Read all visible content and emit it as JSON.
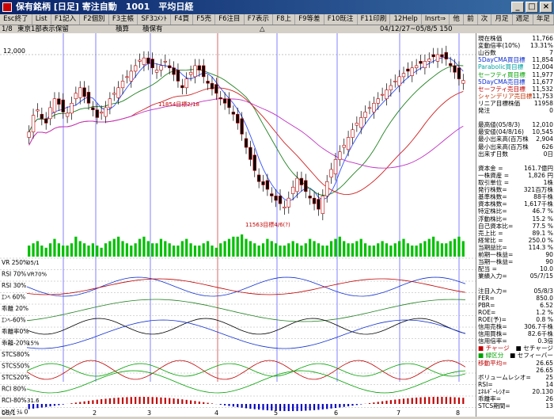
{
  "window": {
    "title": "保有銘柄 [日足] 寄注自動　1001　平均日経",
    "minimize": "_",
    "maximize": "□",
    "close": "×"
  },
  "fkeys": [
    "Esc終了",
    "List",
    "F1記入",
    "F2個別",
    "F3主帳",
    "SF3ｺﾒﾝﾄ",
    "F4買",
    "F5売",
    "F6注目",
    "F7表示",
    "F8上",
    "F9等差",
    "F10既注",
    "F11印刷",
    "12Help",
    "Insrt⇒",
    "他",
    "前",
    "次",
    "月足",
    "週足",
    "年足"
  ],
  "info": {
    "page": "1/8",
    "market": "東京1部表示保留",
    "label2": "積算",
    "label3": "積保有",
    "marker": "△",
    "period": "04/12/27~05/8/5 150"
  },
  "colors": {
    "up": "#ffffff",
    "down": "#000000",
    "grid_v": "#3030ff",
    "grid_red": "#c00000",
    "ma_short": "#d02020",
    "ma_mid": "#208020",
    "ma_long": "#c030c0",
    "ma_blue": "#3050ff",
    "volume": "#00c000",
    "histogram_pos": "#c00000",
    "histogram_neg": "#0000c0"
  },
  "chart_data": {
    "type": "candlestick",
    "y_top_label": "12,000",
    "annotations": [
      "11854目標2/18",
      "11563目標4/6(?)"
    ],
    "x_tick_labels": [
      "05/1",
      "2",
      "3",
      "4",
      "5",
      "6",
      "7",
      "8"
    ],
    "indicator_labels": [
      {
        "name": "VR 250%",
        "sub": "05/1"
      },
      {
        "name": "RSI 70%",
        "sub": "VR70%"
      },
      {
        "name": "RSI 30%",
        "sub": ""
      },
      {
        "name": "ｴﾝﾍ 60%",
        "sub": ""
      },
      {
        "name": "乖離 20%",
        "sub": ""
      },
      {
        "name": "ｴﾝﾍ-60%",
        "sub": ""
      },
      {
        "name": "乖離率0%",
        "sub": ""
      },
      {
        "name": "乖離-20%",
        "sub": "15%"
      },
      {
        "name": "STCS80%",
        "sub": ""
      },
      {
        "name": "STCS50%",
        "sub": ""
      },
      {
        "name": "STCS20%",
        "sub": ""
      },
      {
        "name": "RCI 80%",
        "sub": ""
      },
      {
        "name": "RCI-80%",
        "sub": "31.6"
      },
      {
        "name": "ﾋｽﾄｸﾞﾗﾑ 0",
        "sub": ""
      },
      {
        "name": "-107.8",
        "sub": ""
      }
    ],
    "closes": [
      11300,
      11450,
      11500,
      11420,
      11380,
      11520,
      11600,
      11550,
      11480,
      11470,
      11560,
      11650,
      11700,
      11620,
      11560,
      11500,
      11430,
      11480,
      11520,
      11600,
      11650,
      11700,
      11760,
      11800,
      11850,
      11900,
      11950,
      11970,
      11920,
      11880,
      11860,
      11900,
      11940,
      11880,
      11820,
      11760,
      11700,
      11780,
      11840,
      11900,
      11860,
      11800,
      11740,
      11690,
      11650,
      11600,
      11560,
      11520,
      11460,
      11380,
      11280,
      11160,
      11050,
      10950,
      10850,
      10820,
      10780,
      10720,
      10680,
      10650,
      10620,
      10700,
      10800,
      10880,
      10820,
      10760,
      10700,
      10650,
      10600,
      10720,
      10850,
      10960,
      11050,
      11120,
      11180,
      11250,
      11320,
      11380,
      11430,
      11480,
      11520,
      11560,
      11600,
      11640,
      11680,
      11720,
      11760,
      11800,
      11830,
      11850,
      11880,
      11900,
      11920,
      11940,
      11960,
      11980,
      12000,
      11980,
      11960,
      11900,
      11840,
      11780,
      11766
    ],
    "volume_relative": [
      0.5,
      0.6,
      0.7,
      0.5,
      0.4,
      0.6,
      0.8,
      0.6,
      0.5,
      0.5,
      0.6,
      0.9,
      0.7,
      0.6,
      0.5,
      0.6,
      0.5,
      0.4,
      0.6,
      0.7,
      0.8,
      0.9,
      0.7,
      0.6,
      0.5,
      0.6,
      0.8,
      0.9,
      0.7,
      0.6,
      0.6,
      0.8,
      0.7,
      0.6,
      0.5,
      0.5,
      0.7,
      0.8,
      0.6,
      0.5,
      0.5,
      0.6,
      0.7,
      0.5,
      0.4,
      0.6,
      0.7,
      0.8,
      0.9,
      0.9,
      1.0,
      0.8,
      0.7,
      0.6,
      0.5,
      0.6,
      0.8,
      0.7,
      0.6,
      0.5,
      0.5,
      0.6,
      0.7,
      0.6,
      0.5,
      0.6,
      0.8,
      0.7,
      0.6,
      0.5,
      0.5,
      0.7,
      0.8,
      0.9,
      0.7,
      0.6,
      0.6,
      0.7,
      0.8,
      0.6,
      0.5,
      0.5,
      0.6,
      0.7,
      0.6,
      0.5,
      0.6,
      0.7,
      0.8,
      0.6,
      0.5,
      0.5,
      0.6,
      0.7,
      0.8,
      0.9,
      0.7,
      0.6,
      0.6,
      0.7,
      0.8,
      0.9,
      0.7
    ]
  },
  "panel": [
    {
      "k": "現在株価",
      "v": "11,766",
      "c": "#000"
    },
    {
      "k": "変動倍率(10%)",
      "v": "13.31%",
      "c": "#000"
    },
    {
      "k": "山谷数",
      "v": "7",
      "c": "#000"
    },
    {
      "k": "5DayCMA買目標",
      "v": "11,854",
      "c": "#1030d0"
    },
    {
      "k": "Parabolic買目標",
      "v": "12,004",
      "c": "#00a0a0"
    },
    {
      "k": "セーフティ買目標",
      "v": "11,977",
      "c": "#00a000"
    },
    {
      "k": "5DayCMA売目標",
      "v": "11,677",
      "c": "#1030d0"
    },
    {
      "k": "セーフティ売目標",
      "v": "11,532",
      "c": "#c00000"
    },
    {
      "k": "シャンデリア売目標",
      "v": "11,753",
      "c": "#c03000"
    },
    {
      "k": "リニア目標株価",
      "v": "11958",
      "c": "#000"
    },
    {
      "k": "発注",
      "v": "0",
      "c": "#000"
    },
    {
      "k": "",
      "v": "",
      "c": "#000"
    },
    {
      "k": "最高値(05/8/3)",
      "v": "12,010",
      "c": "#000"
    },
    {
      "k": "最安値(04/8/16)",
      "v": "10,545",
      "c": "#000"
    },
    {
      "k": "最小出来高(百万株",
      "v": "2,904",
      "c": "#000"
    },
    {
      "k": "最小出来高(百万株",
      "v": "626",
      "c": "#000"
    },
    {
      "k": "出来ず日数",
      "v": "0日",
      "c": "#000"
    },
    {
      "k": "",
      "v": "",
      "c": "#000"
    },
    {
      "k": "資本金 =",
      "v": "161.7億円",
      "c": "#000"
    },
    {
      "k": "一株資産 =",
      "v": "1,826 円",
      "c": "#000"
    },
    {
      "k": "取引単位 =",
      "v": "1株",
      "c": "#000"
    },
    {
      "k": "発行株数=",
      "v": "321百万株",
      "c": "#000"
    },
    {
      "k": "基準株数=",
      "v": "88千株",
      "c": "#000"
    },
    {
      "k": "資本株数=",
      "v": "1,617千株",
      "c": "#000"
    },
    {
      "k": "特定株比=",
      "v": "46.7 %",
      "c": "#000"
    },
    {
      "k": "浮動株比=",
      "v": "15.2 %",
      "c": "#000"
    },
    {
      "k": "自己資本比=",
      "v": "77.5 %",
      "c": "#000"
    },
    {
      "k": "売上比 =",
      "v": "89.1 %",
      "c": "#000"
    },
    {
      "k": "経常比 =",
      "v": "250.0 %",
      "c": "#000"
    },
    {
      "k": "当期益比=",
      "v": "114.3 %",
      "c": "#000"
    },
    {
      "k": "前期一株益=",
      "v": "90",
      "c": "#000"
    },
    {
      "k": "当期一株益=",
      "v": "90",
      "c": "#000"
    },
    {
      "k": "配当 =",
      "v": "10.0",
      "c": "#000"
    },
    {
      "k": "業績入力=",
      "v": "05/7/15",
      "c": "#000"
    },
    {
      "k": "",
      "v": "",
      "c": "#000"
    },
    {
      "k": "注目入力=",
      "v": "05/8/3",
      "c": "#000"
    },
    {
      "k": "FER=",
      "v": "850.0",
      "c": "#000"
    },
    {
      "k": "PBR=",
      "v": "6.52",
      "c": "#000"
    },
    {
      "k": "ROE=",
      "v": "1.2 %",
      "c": "#000"
    },
    {
      "k": "ROE(予)=",
      "v": "0.8 %",
      "c": "#000"
    },
    {
      "k": "信用売株=",
      "v": "306.7千株",
      "c": "#000"
    },
    {
      "k": "信用買株=",
      "v": "82.6千株",
      "c": "#000"
    },
    {
      "k": "信用倍率=",
      "v": "0.3倍",
      "c": "#000"
    },
    {
      "k": "■ チャージ",
      "v": "■ セチャージ",
      "c": "#c00000"
    },
    {
      "k": "■ 緑区分",
      "v": "■ セフィーバー",
      "c": "#00a000"
    },
    {
      "k": "移動平均=",
      "v": "26.65",
      "c": "#c00000"
    },
    {
      "k": "",
      "v": "26.65",
      "c": "#000"
    },
    {
      "k": "ボリュームレシオ=",
      "v": "25",
      "c": "#000"
    },
    {
      "k": "RSI=",
      "v": "14",
      "c": "#000"
    },
    {
      "k": "ｴﾈﾙｷﾞｰﾚｼｵ=",
      "v": "20.130",
      "c": "#000"
    },
    {
      "k": "乖離率=",
      "v": "26",
      "c": "#000"
    },
    {
      "k": "STCS期間=",
      "v": "13",
      "c": "#000"
    }
  ]
}
